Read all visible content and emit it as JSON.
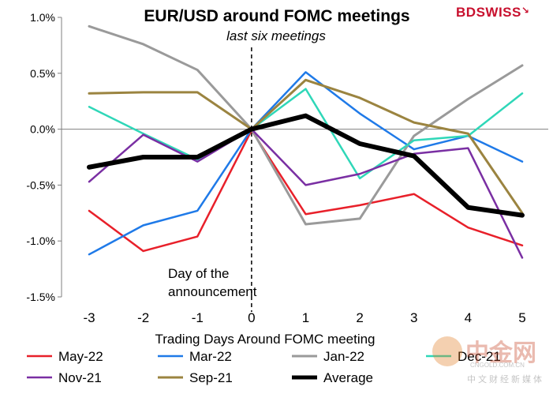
{
  "brand": {
    "logo_text_a": "BD",
    "logo_text_b": "SWISS"
  },
  "watermark": {
    "name": "中金网",
    "url": "CNGOLD.COM.CN",
    "tagline": "中文财经新媒体"
  },
  "chart_data": {
    "type": "line",
    "title": "EUR/USD around FOMC meetings",
    "subtitle": "last six meetings",
    "xlabel": "Trading Days Around FOMC meeting",
    "ylabel": "",
    "x": [
      -3,
      -2,
      -1,
      0,
      1,
      2,
      3,
      4,
      5
    ],
    "ylim": [
      -1.5,
      1.0
    ],
    "yticks": [
      1.0,
      0.5,
      0.0,
      -0.5,
      -1.0,
      -1.5
    ],
    "ytick_labels": [
      "1.0%",
      "0.5%",
      "0.0%",
      "-0.5%",
      "-1.0%",
      "-1.5%"
    ],
    "xtick_labels": [
      "-3",
      "-2",
      "-1",
      "0",
      "1",
      "2",
      "3",
      "4",
      "5"
    ],
    "grid": false,
    "annotation": {
      "text_line1": "Day of the",
      "text_line2": "announcement",
      "x": 0
    },
    "legend_placement": "bottom",
    "series": [
      {
        "name": "May-22",
        "color": "#e8202a",
        "width": 2.5,
        "values": [
          -0.73,
          -1.09,
          -0.96,
          -0.01,
          -0.76,
          -0.68,
          -0.58,
          -0.88,
          -1.04
        ]
      },
      {
        "name": "Mar-22",
        "color": "#1f7ae8",
        "width": 2.5,
        "values": [
          -1.12,
          -0.86,
          -0.73,
          0.0,
          0.51,
          0.14,
          -0.18,
          -0.06,
          -0.29
        ]
      },
      {
        "name": "Jan-22",
        "color": "#9a9a9a",
        "width": 3,
        "values": [
          0.92,
          0.76,
          0.53,
          0.0,
          -0.85,
          -0.8,
          -0.06,
          0.27,
          0.57
        ]
      },
      {
        "name": "Dec-21",
        "color": "#2fd7b8",
        "width": 2.5,
        "values": [
          0.2,
          -0.04,
          -0.27,
          0.0,
          0.36,
          -0.44,
          -0.1,
          -0.06,
          0.32
        ]
      },
      {
        "name": "Nov-21",
        "color": "#7a2fa3",
        "width": 2.5,
        "values": [
          -0.47,
          -0.05,
          -0.29,
          0.0,
          -0.5,
          -0.4,
          -0.22,
          -0.17,
          -1.15
        ]
      },
      {
        "name": "Sep-21",
        "color": "#9b8440",
        "width": 3,
        "values": [
          0.32,
          0.33,
          0.33,
          0.0,
          0.44,
          0.28,
          0.06,
          -0.04,
          -0.75
        ]
      },
      {
        "name": "Average",
        "color": "#000000",
        "width": 6,
        "values": [
          -0.34,
          -0.25,
          -0.25,
          0.0,
          0.12,
          -0.13,
          -0.24,
          -0.7,
          -0.77
        ]
      }
    ]
  }
}
